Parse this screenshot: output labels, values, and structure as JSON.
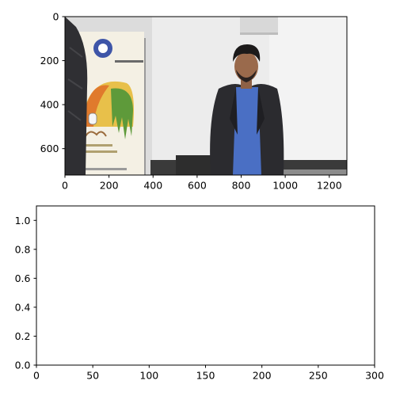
{
  "figure": {
    "background": "#ffffff",
    "axis_color": "#000000"
  },
  "chart_data": [
    {
      "type": "image",
      "title": "",
      "xlabel": "",
      "ylabel": "",
      "image_size": [
        1280,
        720
      ],
      "xlim": [
        0,
        1280
      ],
      "ylim": [
        720,
        0
      ],
      "y_inverted": true,
      "grid": false,
      "legend": "none",
      "xticks": [
        0,
        200,
        400,
        600,
        800,
        1000,
        1200
      ],
      "yticks": [
        0,
        200,
        400,
        600
      ],
      "xtick_labels": [
        "0",
        "200",
        "400",
        "600",
        "800",
        "1000",
        "1200"
      ],
      "ytick_labels": [
        "0",
        "200",
        "400",
        "600"
      ],
      "image_content": "webcam frame of a man in a dark blazer and blue shirt standing in a room; event standee with a logo at left; person in a dark jacket partially visible at left edge",
      "palette": {
        "wall": "#eeeeee",
        "wall_shade": "#cfcfcf",
        "floor": "#3a3a3a",
        "blazer": "#2b2b2f",
        "shirt": "#4a6fc4",
        "skin": "#9a6a4c",
        "hair": "#1c1a1a",
        "jacket_left": "#2f2f33",
        "standee_bg": "#f4f0e4",
        "standee_yellow": "#e8c04a",
        "standee_green": "#5e9a3a",
        "standee_orange": "#e07a2c",
        "logo_blue": "#3e55a8"
      }
    },
    {
      "type": "line",
      "title": "",
      "xlabel": "",
      "ylabel": "",
      "series": [],
      "xlim": [
        0,
        300
      ],
      "ylim": [
        0,
        1.1
      ],
      "grid": false,
      "legend": "none",
      "xticks": [
        0,
        50,
        100,
        150,
        200,
        250,
        300
      ],
      "yticks": [
        0.0,
        0.2,
        0.4,
        0.6,
        0.8,
        1.0
      ],
      "xtick_labels": [
        "0",
        "50",
        "100",
        "150",
        "200",
        "250",
        "300"
      ],
      "ytick_labels": [
        "0.0",
        "0.2",
        "0.4",
        "0.6",
        "0.8",
        "1.0"
      ]
    }
  ]
}
